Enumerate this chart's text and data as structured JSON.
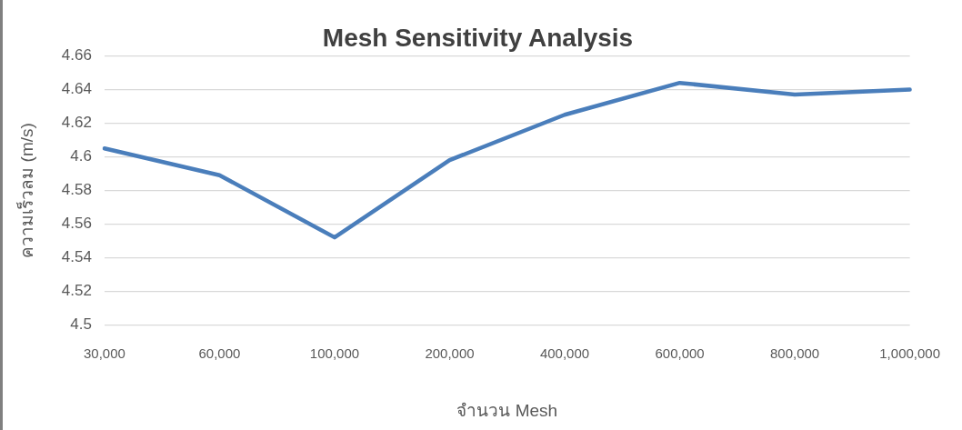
{
  "chart_data": {
    "type": "line",
    "title": "Mesh Sensitivity Analysis",
    "xlabel": "จำนวน Mesh",
    "ylabel": "ความเร็วลม (m/s)",
    "categories": [
      "30,000",
      "60,000",
      "100,000",
      "200,000",
      "400,000",
      "600,000",
      "800,000",
      "1,000,000"
    ],
    "series": [
      {
        "color": "#4a7ebb",
        "values": [
          4.605,
          4.589,
          4.552,
          4.598,
          4.625,
          4.644,
          4.637,
          4.64
        ]
      }
    ],
    "ylim": [
      4.5,
      4.66
    ],
    "yticks": [
      4.5,
      4.52,
      4.54,
      4.56,
      4.58,
      4.6,
      4.62,
      4.64,
      4.66
    ],
    "grid": "y",
    "legend": false,
    "marker": "none",
    "line_style": "solid"
  }
}
